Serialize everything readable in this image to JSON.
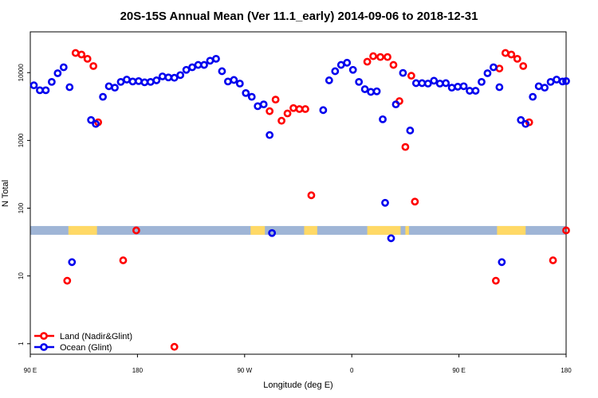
{
  "chart_data": {
    "type": "scatter",
    "title": "20S-15S Annual Mean (Ver 11.1_early)   2014-09-06 to 2018-12-31",
    "xlabel": "Longitude (deg E)",
    "ylabel": "N Total",
    "x_axis_range": [
      90,
      540
    ],
    "y_scale": "log",
    "ylim": [
      0.7,
      40000
    ],
    "x_ticks": [
      {
        "value": 90,
        "label": "90 E"
      },
      {
        "value": 180,
        "label": "180"
      },
      {
        "value": 270,
        "label": "90 W"
      },
      {
        "value": 360,
        "label": "0"
      },
      {
        "value": 450,
        "label": "90 E"
      },
      {
        "value": 540,
        "label": "180"
      }
    ],
    "y_ticks": [
      {
        "value": 1,
        "label": "1"
      },
      {
        "value": 10,
        "label": "10"
      },
      {
        "value": 100,
        "label": "100"
      },
      {
        "value": 1000,
        "label": "1000"
      },
      {
        "value": 10000,
        "label": "10000"
      }
    ],
    "landmask": {
      "y_value": 47,
      "ocean_color": "#9fb5d6",
      "land_color": "#ffd966",
      "land_ranges": [
        [
          122,
          146
        ],
        [
          275,
          287
        ],
        [
          320,
          331
        ],
        [
          373,
          401
        ],
        [
          405,
          408
        ],
        [
          482,
          506
        ]
      ]
    },
    "series": [
      {
        "name": "Land (Nadir&Glint)",
        "color": "#ff0000",
        "points": [
          [
            121,
            8.5
          ],
          [
            128,
            19500
          ],
          [
            133,
            18500
          ],
          [
            138,
            16000
          ],
          [
            143,
            12500
          ],
          [
            147,
            1850
          ],
          [
            168,
            17
          ],
          [
            179,
            47
          ],
          [
            211,
            0.9
          ],
          [
            291,
            2700
          ],
          [
            296,
            4000
          ],
          [
            301,
            1950
          ],
          [
            306,
            2500
          ],
          [
            311,
            3000
          ],
          [
            316,
            2900
          ],
          [
            321,
            2900
          ],
          [
            326,
            155
          ],
          [
            373,
            14500
          ],
          [
            378,
            17500
          ],
          [
            384,
            17000
          ],
          [
            390,
            17000
          ],
          [
            395,
            13000
          ],
          [
            400,
            3800
          ],
          [
            405,
            800
          ],
          [
            410,
            9000
          ],
          [
            413,
            125
          ],
          [
            481,
            8.5
          ],
          [
            484,
            11500
          ],
          [
            489,
            19500
          ],
          [
            494,
            18500
          ],
          [
            499,
            16000
          ],
          [
            504,
            12500
          ],
          [
            509,
            1850
          ],
          [
            529,
            17
          ],
          [
            540,
            47
          ]
        ]
      },
      {
        "name": "Ocean (Glint)",
        "color": "#0000ee",
        "points": [
          [
            93,
            6500
          ],
          [
            98,
            5500
          ],
          [
            103,
            5500
          ],
          [
            108,
            7300
          ],
          [
            113,
            9800
          ],
          [
            118,
            12000
          ],
          [
            123,
            6100
          ],
          [
            125,
            16
          ],
          [
            141,
            2000
          ],
          [
            145,
            1750
          ],
          [
            151,
            4400
          ],
          [
            156,
            6300
          ],
          [
            161,
            6000
          ],
          [
            166,
            7300
          ],
          [
            171,
            7900
          ],
          [
            176,
            7400
          ],
          [
            181,
            7500
          ],
          [
            186,
            7200
          ],
          [
            191,
            7300
          ],
          [
            196,
            7700
          ],
          [
            201,
            8800
          ],
          [
            206,
            8500
          ],
          [
            211,
            8400
          ],
          [
            216,
            9200
          ],
          [
            221,
            11000
          ],
          [
            226,
            12000
          ],
          [
            231,
            13000
          ],
          [
            236,
            13000
          ],
          [
            241,
            15000
          ],
          [
            246,
            16000
          ],
          [
            251,
            10500
          ],
          [
            256,
            7400
          ],
          [
            261,
            7800
          ],
          [
            266,
            6900
          ],
          [
            271,
            5000
          ],
          [
            276,
            4400
          ],
          [
            281,
            3200
          ],
          [
            286,
            3400
          ],
          [
            291,
            1200
          ],
          [
            293,
            43
          ],
          [
            336,
            2800
          ],
          [
            341,
            7700
          ],
          [
            346,
            10500
          ],
          [
            351,
            13000
          ],
          [
            356,
            14000
          ],
          [
            361,
            11000
          ],
          [
            366,
            7300
          ],
          [
            371,
            5700
          ],
          [
            376,
            5200
          ],
          [
            381,
            5300
          ],
          [
            386,
            2050
          ],
          [
            388,
            120
          ],
          [
            393,
            36
          ],
          [
            397,
            3400
          ],
          [
            403,
            9900
          ],
          [
            409,
            1400
          ],
          [
            414,
            7000
          ],
          [
            419,
            7000
          ],
          [
            424,
            6900
          ],
          [
            429,
            7600
          ],
          [
            434,
            6900
          ],
          [
            439,
            7000
          ],
          [
            444,
            6000
          ],
          [
            449,
            6200
          ],
          [
            454,
            6300
          ],
          [
            459,
            5400
          ],
          [
            464,
            5400
          ],
          [
            469,
            7300
          ],
          [
            474,
            9800
          ],
          [
            479,
            12000
          ],
          [
            484,
            6100
          ],
          [
            486,
            16
          ],
          [
            502,
            2000
          ],
          [
            506,
            1750
          ],
          [
            512,
            4400
          ],
          [
            517,
            6300
          ],
          [
            522,
            6000
          ],
          [
            527,
            7300
          ],
          [
            532,
            7900
          ],
          [
            537,
            7400
          ],
          [
            540,
            7500
          ]
        ]
      }
    ],
    "legend": {
      "position": "bottom-left",
      "entries": [
        {
          "label": "Land (Nadir&Glint)",
          "color": "#ff0000"
        },
        {
          "label": "Ocean (Glint)",
          "color": "#0000ee"
        }
      ]
    }
  }
}
